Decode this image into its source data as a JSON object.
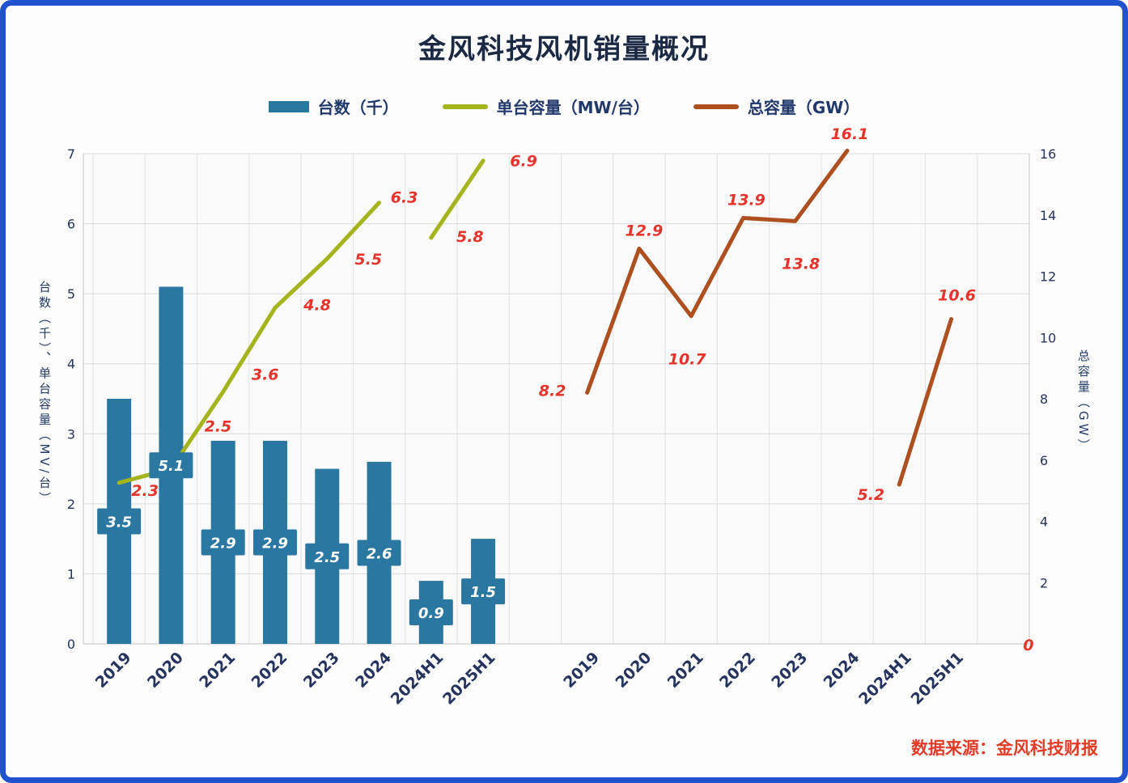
{
  "title": "金风科技风机销量概况",
  "legend": [
    {
      "label": "台数（千）"
    },
    {
      "label": "单台容量（MW/台）"
    },
    {
      "label": "总容量（GW）"
    }
  ],
  "left_axis": {
    "label": "台数（千）、单台容量（MV/台）",
    "min": 0,
    "max": 7,
    "ticks": [
      0,
      1,
      2,
      3,
      4,
      5,
      6,
      7
    ]
  },
  "right_axis": {
    "label": "总容量（GW）",
    "min": 0,
    "max": 16,
    "ticks": [
      2,
      4,
      6,
      8,
      10,
      12,
      14,
      16
    ],
    "zero_label": "0"
  },
  "source_note": "数据来源：金风科技财报",
  "colors": {
    "bar": "#2a78a2",
    "unit_capacity_line": "#a4b41c",
    "total_capacity_line": "#ad4f1e",
    "data_label_red": "#e5342b",
    "axis_text": "#25345c",
    "title_text": "#1b2942",
    "frame_border": "#2253cf"
  },
  "chart_data": {
    "type": "combo (bar + two lines, dual y-axis, two repeated category groups)",
    "title": "金风科技风机销量概况",
    "categories": [
      "2019",
      "2020",
      "2021",
      "2022",
      "2023",
      "2024",
      "2024H1",
      "2025H1"
    ],
    "series": [
      {
        "name": "台数（千）",
        "type": "bar",
        "axis": "left",
        "group": "left",
        "values": [
          3.5,
          5.1,
          2.9,
          2.9,
          2.5,
          2.6,
          0.9,
          1.5
        ]
      },
      {
        "name": "单台容量（MW/台）",
        "type": "line",
        "axis": "left",
        "group": "left",
        "gap_after": "2024",
        "values": [
          2.3,
          2.5,
          3.6,
          4.8,
          5.5,
          6.3,
          5.8,
          6.9
        ]
      },
      {
        "name": "总容量（GW）",
        "type": "line",
        "axis": "right",
        "group": "right",
        "gap_after": "2024",
        "values": [
          8.2,
          12.9,
          10.7,
          13.9,
          13.8,
          16.1,
          5.2,
          10.6
        ]
      }
    ],
    "left_axis_range": [
      0,
      7
    ],
    "right_axis_range": [
      0,
      16
    ],
    "grid": true,
    "legend_position": "top",
    "data_labels": true
  }
}
